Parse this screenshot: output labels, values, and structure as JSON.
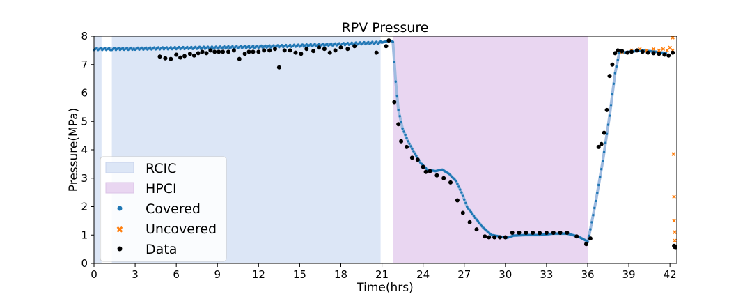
{
  "chart_data": {
    "type": "scatter",
    "title": "RPV Pressure",
    "xlabel": "Time(hrs)",
    "ylabel": "Pressure(MPa)",
    "xlim": [
      0,
      42.5
    ],
    "ylim": [
      0,
      8
    ],
    "xticks": [
      0,
      3,
      6,
      9,
      12,
      15,
      18,
      21,
      24,
      27,
      30,
      33,
      36,
      39,
      42
    ],
    "yticks": [
      0,
      1,
      2,
      3,
      4,
      5,
      6,
      7,
      8
    ],
    "grid": false,
    "legend_placement": "lower-left",
    "regions": [
      {
        "name": "RCIC",
        "color": "#dce6f6",
        "spans": [
          [
            0,
            0.55
          ],
          [
            1.3,
            20.9
          ]
        ]
      },
      {
        "name": "HPCI",
        "color": "#e9d6f1",
        "spans": [
          [
            21.8,
            36.0
          ]
        ]
      }
    ],
    "covered_curve": {
      "name": "Covered",
      "color": "#1f77b4",
      "x": [
        0,
        1.3,
        3,
        6,
        9,
        12,
        15,
        18,
        21,
        21.6,
        21.8,
        22.0,
        22.2,
        22.5,
        22.9,
        23.3,
        23.8,
        24.3,
        24.9,
        25.4,
        25.9,
        26.4,
        26.8,
        27.2,
        27.8,
        28.4,
        29.0,
        29.6,
        30.1,
        30.6,
        31.5,
        32.5,
        33.5,
        34.5,
        35.3,
        35.9,
        36.0,
        36.2,
        36.6,
        37.1,
        37.6,
        38.0,
        38.3,
        39.0,
        40.0,
        41.0,
        41.8
      ],
      "y": [
        7.55,
        7.55,
        7.56,
        7.58,
        7.6,
        7.63,
        7.67,
        7.72,
        7.78,
        7.85,
        7.8,
        6.4,
        5.4,
        4.75,
        4.3,
        3.95,
        3.55,
        3.3,
        3.25,
        3.3,
        3.15,
        2.9,
        2.5,
        2.0,
        1.6,
        1.25,
        1.0,
        0.95,
        0.9,
        0.98,
        1.0,
        1.0,
        1.05,
        1.05,
        0.95,
        0.8,
        0.75,
        1.2,
        2.2,
        3.6,
        5.2,
        6.7,
        7.4,
        7.45,
        7.5,
        7.45,
        7.4
      ]
    },
    "uncovered": {
      "name": "Uncovered",
      "color": "#ff7f0e",
      "points": [
        [
          38.5,
          7.45
        ],
        [
          39.2,
          7.5
        ],
        [
          39.8,
          7.55
        ],
        [
          40.3,
          7.5
        ],
        [
          40.8,
          7.55
        ],
        [
          41.2,
          7.5
        ],
        [
          41.5,
          7.55
        ],
        [
          41.8,
          7.5
        ],
        [
          42.0,
          7.6
        ],
        [
          42.2,
          7.95
        ],
        [
          42.2,
          7.5
        ],
        [
          42.25,
          3.85
        ],
        [
          42.3,
          2.35
        ],
        [
          42.3,
          1.5
        ],
        [
          42.35,
          1.1
        ],
        [
          42.35,
          0.8
        ],
        [
          42.4,
          0.6
        ]
      ]
    },
    "data_series": {
      "name": "Data",
      "color": "#000000",
      "points": [
        [
          4.8,
          7.28
        ],
        [
          5.2,
          7.22
        ],
        [
          5.6,
          7.2
        ],
        [
          6.0,
          7.35
        ],
        [
          6.3,
          7.25
        ],
        [
          6.6,
          7.3
        ],
        [
          7.0,
          7.38
        ],
        [
          7.3,
          7.32
        ],
        [
          7.6,
          7.4
        ],
        [
          7.9,
          7.45
        ],
        [
          8.2,
          7.4
        ],
        [
          8.5,
          7.5
        ],
        [
          8.8,
          7.45
        ],
        [
          9.1,
          7.45
        ],
        [
          9.4,
          7.45
        ],
        [
          9.8,
          7.45
        ],
        [
          10.2,
          7.5
        ],
        [
          10.6,
          7.2
        ],
        [
          11.0,
          7.38
        ],
        [
          11.3,
          7.45
        ],
        [
          11.6,
          7.45
        ],
        [
          12.0,
          7.45
        ],
        [
          12.4,
          7.5
        ],
        [
          12.8,
          7.5
        ],
        [
          13.2,
          7.55
        ],
        [
          13.5,
          6.9
        ],
        [
          13.9,
          7.5
        ],
        [
          14.3,
          7.5
        ],
        [
          14.7,
          7.42
        ],
        [
          15.1,
          7.38
        ],
        [
          15.5,
          7.55
        ],
        [
          16.0,
          7.48
        ],
        [
          16.4,
          7.6
        ],
        [
          16.8,
          7.55
        ],
        [
          17.2,
          7.42
        ],
        [
          17.6,
          7.5
        ],
        [
          18.0,
          7.6
        ],
        [
          18.5,
          7.55
        ],
        [
          19.0,
          7.65
        ],
        [
          20.6,
          7.42
        ],
        [
          21.3,
          7.65
        ],
        [
          21.5,
          7.85
        ],
        [
          21.9,
          5.68
        ],
        [
          22.2,
          4.9
        ],
        [
          22.4,
          4.3
        ],
        [
          22.8,
          4.1
        ],
        [
          23.2,
          3.72
        ],
        [
          23.6,
          3.65
        ],
        [
          24.0,
          3.4
        ],
        [
          24.2,
          3.22
        ],
        [
          24.5,
          3.25
        ],
        [
          25.0,
          3.1
        ],
        [
          25.5,
          3.0
        ],
        [
          26.0,
          2.85
        ],
        [
          26.5,
          2.22
        ],
        [
          26.9,
          1.78
        ],
        [
          27.4,
          1.45
        ],
        [
          27.9,
          1.2
        ],
        [
          28.5,
          0.95
        ],
        [
          28.8,
          0.92
        ],
        [
          29.2,
          0.92
        ],
        [
          29.6,
          0.92
        ],
        [
          30.0,
          0.92
        ],
        [
          30.5,
          1.08
        ],
        [
          31.0,
          1.08
        ],
        [
          31.5,
          1.08
        ],
        [
          32.0,
          1.08
        ],
        [
          32.5,
          1.07
        ],
        [
          33.0,
          1.08
        ],
        [
          33.5,
          1.08
        ],
        [
          34.0,
          1.08
        ],
        [
          34.5,
          1.08
        ],
        [
          35.2,
          0.95
        ],
        [
          35.9,
          0.68
        ],
        [
          36.2,
          0.88
        ],
        [
          36.8,
          4.1
        ],
        [
          37.0,
          4.2
        ],
        [
          37.2,
          4.6
        ],
        [
          37.4,
          5.4
        ],
        [
          37.6,
          6.6
        ],
        [
          37.8,
          7.0
        ],
        [
          38.0,
          7.4
        ],
        [
          38.2,
          7.5
        ],
        [
          38.5,
          7.48
        ],
        [
          38.9,
          7.42
        ],
        [
          39.2,
          7.45
        ],
        [
          39.6,
          7.5
        ],
        [
          40.0,
          7.45
        ],
        [
          40.4,
          7.42
        ],
        [
          40.8,
          7.4
        ],
        [
          41.2,
          7.38
        ],
        [
          41.6,
          7.35
        ],
        [
          41.9,
          7.32
        ],
        [
          42.2,
          7.42
        ],
        [
          42.3,
          0.62
        ],
        [
          42.35,
          0.6
        ],
        [
          42.4,
          0.55
        ]
      ]
    }
  }
}
